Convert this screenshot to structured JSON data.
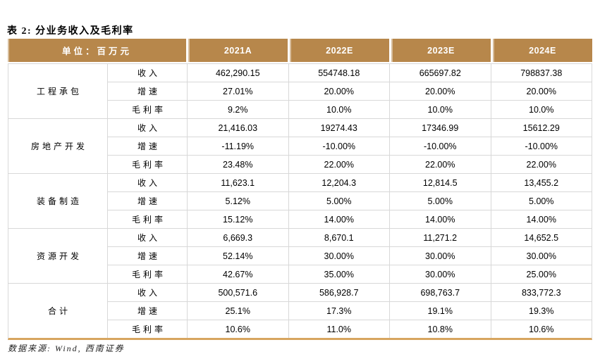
{
  "title": "表 2: 分业务收入及毛利率",
  "colors": {
    "header_bg": "#B7874B",
    "header_text": "#FFFFFF",
    "grid_border": "#D8D8D8",
    "bottom_accent": "#D7A55F"
  },
  "table": {
    "unit_header": "单位：百万元",
    "year_headers": [
      "2021A",
      "2022E",
      "2023E",
      "2024E"
    ],
    "segments": [
      {
        "name": "工程承包",
        "rows": [
          {
            "label": "收入",
            "values": [
              "462,290.15",
              "554748.18",
              "665697.82",
              "798837.38"
            ]
          },
          {
            "label": "增速",
            "values": [
              "27.01%",
              "20.00%",
              "20.00%",
              "20.00%"
            ]
          },
          {
            "label": "毛利率",
            "values": [
              "9.2%",
              "10.0%",
              "10.0%",
              "10.0%"
            ]
          }
        ]
      },
      {
        "name": "房地产开发",
        "rows": [
          {
            "label": "收入",
            "values": [
              "21,416.03",
              "19274.43",
              "17346.99",
              "15612.29"
            ]
          },
          {
            "label": "增速",
            "values": [
              "-11.19%",
              "-10.00%",
              "-10.00%",
              "-10.00%"
            ]
          },
          {
            "label": "毛利率",
            "values": [
              "23.48%",
              "22.00%",
              "22.00%",
              "22.00%"
            ]
          }
        ]
      },
      {
        "name": "装备制造",
        "rows": [
          {
            "label": "收入",
            "values": [
              "11,623.1",
              "12,204.3",
              "12,814.5",
              "13,455.2"
            ]
          },
          {
            "label": "增速",
            "values": [
              "5.12%",
              "5.00%",
              "5.00%",
              "5.00%"
            ]
          },
          {
            "label": "毛利率",
            "values": [
              "15.12%",
              "14.00%",
              "14.00%",
              "14.00%"
            ]
          }
        ]
      },
      {
        "name": "资源开发",
        "rows": [
          {
            "label": "收入",
            "values": [
              "6,669.3",
              "8,670.1",
              "11,271.2",
              "14,652.5"
            ]
          },
          {
            "label": "增速",
            "values": [
              "52.14%",
              "30.00%",
              "30.00%",
              "30.00%"
            ]
          },
          {
            "label": "毛利率",
            "values": [
              "42.67%",
              "35.00%",
              "30.00%",
              "25.00%"
            ]
          }
        ]
      },
      {
        "name": "合计",
        "rows": [
          {
            "label": "收入",
            "values": [
              "500,571.6",
              "586,928.7",
              "698,763.7",
              "833,772.3"
            ]
          },
          {
            "label": "增速",
            "values": [
              "25.1%",
              "17.3%",
              "19.1%",
              "19.3%"
            ]
          },
          {
            "label": "毛利率",
            "values": [
              "10.6%",
              "11.0%",
              "10.8%",
              "10.6%"
            ]
          }
        ]
      }
    ]
  },
  "footer": {
    "source_label": "数据来源: Wind, 西南证券"
  }
}
